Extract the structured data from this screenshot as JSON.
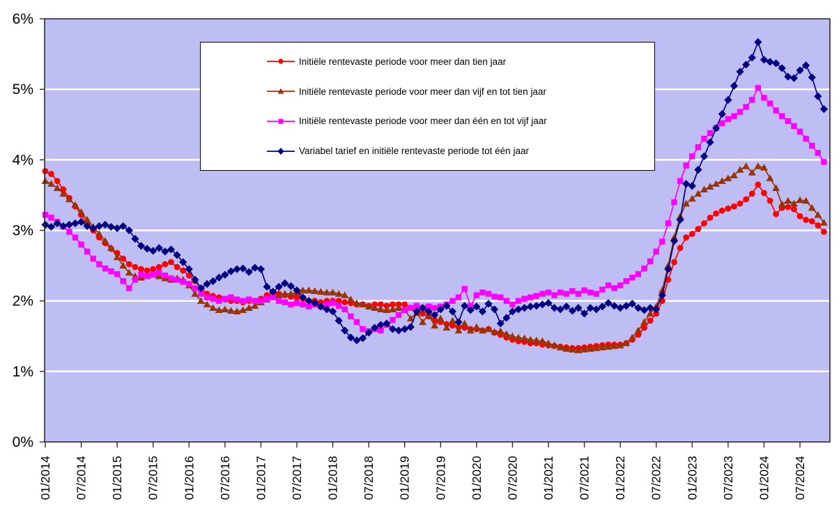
{
  "chart_data": {
    "type": "line",
    "title": "",
    "xlabel": "",
    "ylabel": "",
    "ylim": [
      0,
      6
    ],
    "y_tick_labels": [
      "0%",
      "1%",
      "2%",
      "3%",
      "4%",
      "5%",
      "6%"
    ],
    "x_tick_labels": [
      "01/2014",
      "07/2014",
      "01/2015",
      "07/2015",
      "01/2016",
      "07/2016",
      "01/2017",
      "07/2017",
      "01/2018",
      "07/2018",
      "01/2019",
      "07/2019",
      "01/2020",
      "07/2020",
      "01/2021",
      "07/2021",
      "01/2022",
      "07/2022",
      "01/2023",
      "07/2023",
      "01/2024",
      "07/2024"
    ],
    "x_start": "01/2014",
    "x_end": "11/2024",
    "n_points": 131,
    "tick_interval_months": 6,
    "grid": "horizontal-white",
    "plot_bg_color": "#BEBEF4",
    "grid_color": "#FFFFFF",
    "axis_color": "#2b2b2b",
    "legend_position": "top-center-inside",
    "series": [
      {
        "name": "Initiële rentevaste periode voor meer dan tien jaar",
        "color": "#FF0000",
        "marker": "circle",
        "values": [
          3.84,
          3.8,
          3.7,
          3.58,
          3.46,
          3.34,
          3.22,
          3.1,
          3.0,
          2.9,
          2.82,
          2.74,
          2.68,
          2.6,
          2.52,
          2.48,
          2.45,
          2.43,
          2.45,
          2.48,
          2.52,
          2.55,
          2.48,
          2.43,
          2.36,
          2.28,
          2.18,
          2.1,
          2.07,
          2.05,
          2.02,
          2.0,
          2.0,
          1.98,
          2.0,
          2.0,
          2.03,
          2.08,
          2.1,
          2.1,
          2.08,
          2.06,
          2.05,
          2.03,
          2.0,
          2.0,
          1.98,
          2.0,
          2.0,
          2.0,
          1.98,
          1.97,
          1.95,
          1.95,
          1.93,
          1.95,
          1.95,
          1.93,
          1.95,
          1.95,
          1.95,
          1.9,
          1.85,
          1.82,
          1.78,
          1.73,
          1.7,
          1.67,
          1.65,
          1.63,
          1.62,
          1.6,
          1.6,
          1.58,
          1.6,
          1.55,
          1.52,
          1.48,
          1.45,
          1.43,
          1.42,
          1.4,
          1.4,
          1.38,
          1.37,
          1.36,
          1.35,
          1.34,
          1.33,
          1.33,
          1.34,
          1.35,
          1.36,
          1.37,
          1.38,
          1.38,
          1.38,
          1.4,
          1.45,
          1.52,
          1.62,
          1.72,
          1.82,
          2.0,
          2.3,
          2.55,
          2.75,
          2.9,
          2.95,
          3.02,
          3.1,
          3.18,
          3.24,
          3.28,
          3.31,
          3.34,
          3.38,
          3.44,
          3.52,
          3.65,
          3.53,
          3.42,
          3.23,
          3.32,
          3.33,
          3.3,
          3.2,
          3.15,
          3.13,
          3.07,
          2.98
        ]
      },
      {
        "name": "Initiële rentevaste periode voor meer dan vijf en tot tien jaar",
        "color": "#993300",
        "marker": "triangle",
        "values": [
          3.7,
          3.66,
          3.6,
          3.52,
          3.44,
          3.36,
          3.26,
          3.15,
          3.05,
          2.95,
          2.85,
          2.75,
          2.62,
          2.5,
          2.4,
          2.35,
          2.33,
          2.35,
          2.37,
          2.35,
          2.32,
          2.3,
          2.32,
          2.3,
          2.22,
          2.1,
          2.0,
          1.95,
          1.9,
          1.87,
          1.88,
          1.86,
          1.85,
          1.87,
          1.9,
          1.93,
          1.98,
          2.02,
          2.06,
          2.08,
          2.1,
          2.1,
          2.12,
          2.15,
          2.15,
          2.14,
          2.13,
          2.12,
          2.12,
          2.1,
          2.08,
          2.02,
          1.97,
          1.95,
          1.92,
          1.9,
          1.88,
          1.87,
          1.88,
          1.9,
          1.88,
          1.75,
          1.83,
          1.7,
          1.8,
          1.65,
          1.75,
          1.62,
          1.72,
          1.58,
          1.68,
          1.58,
          1.63,
          1.58,
          1.6,
          1.56,
          1.57,
          1.53,
          1.5,
          1.48,
          1.47,
          1.45,
          1.44,
          1.43,
          1.4,
          1.37,
          1.34,
          1.32,
          1.31,
          1.3,
          1.31,
          1.32,
          1.33,
          1.34,
          1.35,
          1.36,
          1.37,
          1.4,
          1.48,
          1.58,
          1.7,
          1.82,
          1.92,
          2.15,
          2.5,
          2.9,
          3.2,
          3.38,
          3.45,
          3.52,
          3.58,
          3.62,
          3.66,
          3.7,
          3.74,
          3.78,
          3.86,
          3.91,
          3.82,
          3.91,
          3.89,
          3.74,
          3.6,
          3.37,
          3.42,
          3.38,
          3.43,
          3.42,
          3.32,
          3.22,
          3.11
        ]
      },
      {
        "name": "Initiële rentevaste periode voor meer dan één en tot vijf jaar",
        "color": "#FF00FF",
        "marker": "square",
        "values": [
          3.22,
          3.18,
          3.12,
          3.05,
          2.98,
          2.9,
          2.8,
          2.7,
          2.6,
          2.52,
          2.46,
          2.42,
          2.38,
          2.28,
          2.18,
          2.3,
          2.37,
          2.35,
          2.37,
          2.4,
          2.36,
          2.32,
          2.3,
          2.27,
          2.24,
          2.18,
          2.1,
          2.05,
          2.03,
          2.0,
          2.03,
          2.05,
          2.02,
          2.0,
          2.02,
          2.0,
          2.0,
          2.03,
          2.05,
          2.0,
          1.98,
          1.95,
          1.97,
          1.95,
          1.92,
          1.95,
          1.92,
          1.95,
          1.97,
          1.93,
          1.88,
          1.78,
          1.7,
          1.6,
          1.57,
          1.6,
          1.58,
          1.66,
          1.73,
          1.8,
          1.87,
          1.9,
          1.93,
          1.9,
          1.92,
          1.9,
          1.92,
          1.95,
          2.0,
          2.05,
          2.17,
          1.93,
          2.08,
          2.12,
          2.1,
          2.06,
          2.05,
          2.0,
          1.95,
          2.0,
          2.03,
          2.05,
          2.07,
          2.1,
          2.12,
          2.08,
          2.12,
          2.1,
          2.14,
          2.1,
          2.15,
          2.12,
          2.1,
          2.16,
          2.22,
          2.18,
          2.22,
          2.28,
          2.33,
          2.38,
          2.46,
          2.56,
          2.7,
          2.84,
          3.1,
          3.4,
          3.7,
          3.92,
          4.05,
          4.18,
          4.3,
          4.38,
          4.45,
          4.52,
          4.58,
          4.62,
          4.68,
          4.75,
          4.85,
          5.02,
          4.88,
          4.8,
          4.7,
          4.62,
          4.55,
          4.48,
          4.4,
          4.3,
          4.2,
          4.1,
          3.97
        ]
      },
      {
        "name": "Variabel tarief en initiële rentevaste periode tot één jaar",
        "color": "#000080",
        "marker": "diamond",
        "values": [
          3.08,
          3.05,
          3.1,
          3.06,
          3.08,
          3.1,
          3.12,
          3.06,
          3.03,
          3.06,
          3.08,
          3.05,
          3.03,
          3.06,
          3.0,
          2.88,
          2.78,
          2.74,
          2.71,
          2.75,
          2.7,
          2.73,
          2.65,
          2.55,
          2.45,
          2.3,
          2.18,
          2.24,
          2.28,
          2.33,
          2.37,
          2.42,
          2.45,
          2.46,
          2.41,
          2.47,
          2.45,
          2.2,
          2.13,
          2.2,
          2.25,
          2.21,
          2.15,
          2.05,
          2.0,
          1.97,
          1.92,
          1.88,
          1.85,
          1.72,
          1.58,
          1.48,
          1.44,
          1.47,
          1.55,
          1.62,
          1.66,
          1.68,
          1.6,
          1.58,
          1.6,
          1.63,
          1.85,
          1.9,
          1.85,
          1.8,
          1.88,
          1.93,
          1.85,
          1.7,
          1.93,
          1.87,
          1.92,
          1.85,
          1.96,
          1.88,
          1.68,
          1.76,
          1.85,
          1.88,
          1.9,
          1.92,
          1.93,
          1.95,
          1.97,
          1.9,
          1.88,
          1.92,
          1.86,
          1.9,
          1.82,
          1.9,
          1.88,
          1.92,
          1.97,
          1.93,
          1.9,
          1.93,
          1.96,
          1.9,
          1.87,
          1.9,
          1.88,
          2.08,
          2.45,
          2.85,
          3.15,
          3.66,
          3.63,
          3.86,
          4.05,
          4.25,
          4.45,
          4.65,
          4.85,
          5.05,
          5.25,
          5.35,
          5.45,
          5.67,
          5.42,
          5.39,
          5.37,
          5.3,
          5.18,
          5.16,
          5.27,
          5.34,
          5.17,
          4.9,
          4.72
        ]
      }
    ]
  }
}
